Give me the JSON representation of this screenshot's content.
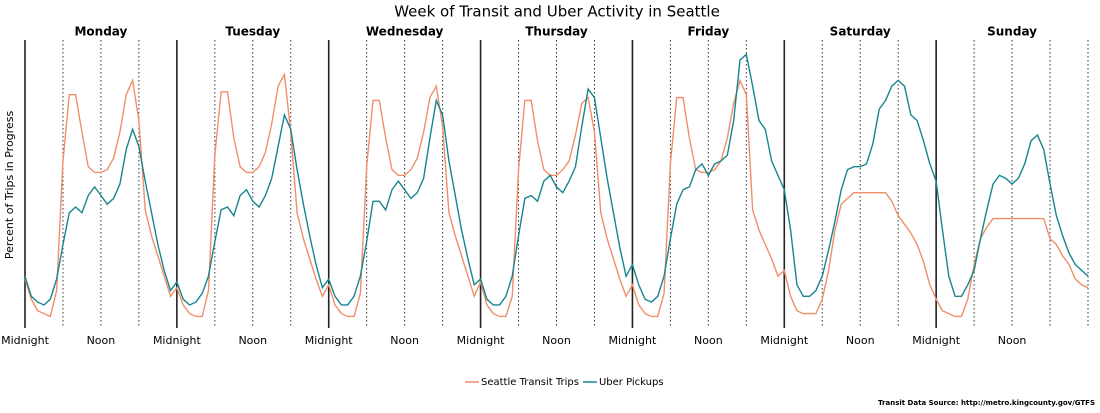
{
  "chart_data": {
    "type": "line",
    "title": "Week of Transit and Uber Activity in Seattle",
    "y_label": "Percent of Trips in Progress",
    "source": "Transit Data Source: http://metro.kingcounty.gov/GTFS",
    "days": [
      "Monday",
      "Tuesday",
      "Wednesday",
      "Thursday",
      "Friday",
      "Saturday",
      "Sunday"
    ],
    "xlim": [
      0,
      168
    ],
    "ylim": [
      0,
      100
    ],
    "xticks": [
      {
        "value": 0,
        "label": "Midnight"
      },
      {
        "value": 12,
        "label": "Noon"
      },
      {
        "value": 24,
        "label": "Midnight"
      },
      {
        "value": 36,
        "label": "Noon"
      },
      {
        "value": 48,
        "label": "Midnight"
      },
      {
        "value": 60,
        "label": "Noon"
      },
      {
        "value": 72,
        "label": "Midnight"
      },
      {
        "value": 84,
        "label": "Noon"
      },
      {
        "value": 96,
        "label": "Midnight"
      },
      {
        "value": 108,
        "label": "Noon"
      },
      {
        "value": 120,
        "label": "Midnight"
      },
      {
        "value": 132,
        "label": "Noon"
      },
      {
        "value": 144,
        "label": "Midnight"
      },
      {
        "value": 156,
        "label": "Noon"
      }
    ],
    "minor_xticks": [
      6,
      18,
      30,
      42,
      54,
      66,
      78,
      90,
      102,
      114,
      126,
      138,
      150,
      162,
      168
    ],
    "x": [
      0,
      1,
      2,
      3,
      4,
      5,
      6,
      7,
      8,
      9,
      10,
      11,
      12,
      13,
      14,
      15,
      16,
      17,
      18,
      19,
      20,
      21,
      22,
      23,
      24,
      25,
      26,
      27,
      28,
      29,
      30,
      31,
      32,
      33,
      34,
      35,
      36,
      37,
      38,
      39,
      40,
      41,
      42,
      43,
      44,
      45,
      46,
      47,
      48,
      49,
      50,
      51,
      52,
      53,
      54,
      55,
      56,
      57,
      58,
      59,
      60,
      61,
      62,
      63,
      64,
      65,
      66,
      67,
      68,
      69,
      70,
      71,
      72,
      73,
      74,
      75,
      76,
      77,
      78,
      79,
      80,
      81,
      82,
      83,
      84,
      85,
      86,
      87,
      88,
      89,
      90,
      91,
      92,
      93,
      94,
      95,
      96,
      97,
      98,
      99,
      100,
      101,
      102,
      103,
      104,
      105,
      106,
      107,
      108,
      109,
      110,
      111,
      112,
      113,
      114,
      115,
      116,
      117,
      118,
      119,
      120,
      121,
      122,
      123,
      124,
      125,
      126,
      127,
      128,
      129,
      130,
      131,
      132,
      133,
      134,
      135,
      136,
      137,
      138,
      139,
      140,
      141,
      142,
      143,
      144,
      145,
      146,
      147,
      148,
      149,
      150,
      151,
      152,
      153,
      154,
      155,
      156,
      157,
      158,
      159,
      160,
      161,
      162,
      163,
      164,
      165,
      166,
      167,
      168
    ],
    "series": [
      {
        "name": "Seattle Transit Trips",
        "color": "#f08e68",
        "values": [
          17,
          10,
          6,
          5,
          4,
          13,
          58,
          81,
          81,
          68,
          56,
          54,
          54,
          55,
          59,
          68,
          81,
          86,
          72,
          41,
          32,
          25,
          18,
          11,
          14,
          8,
          5,
          4,
          4,
          13,
          60,
          82,
          82,
          66,
          56,
          54,
          54,
          56,
          61,
          71,
          84,
          88,
          68,
          40,
          31,
          24,
          17,
          11,
          15,
          8,
          5,
          4,
          4,
          12,
          56,
          79,
          79,
          66,
          55,
          53,
          53,
          55,
          59,
          68,
          80,
          84,
          70,
          40,
          32,
          25,
          18,
          11,
          16,
          8,
          5,
          4,
          4,
          11,
          55,
          79,
          79,
          65,
          55,
          53,
          53,
          55,
          58,
          67,
          78,
          80,
          68,
          40,
          31,
          24,
          17,
          11,
          15,
          8,
          5,
          4,
          4,
          12,
          57,
          80,
          80,
          66,
          55,
          54,
          54,
          55,
          58,
          66,
          78,
          86,
          81,
          41,
          34,
          29,
          24,
          18,
          20,
          11,
          6,
          5,
          5,
          5,
          10,
          20,
          34,
          43,
          45,
          47,
          47,
          47,
          47,
          47,
          47,
          44,
          39,
          36,
          33,
          29,
          23,
          15,
          10,
          6,
          5,
          4,
          4,
          10,
          22,
          31,
          35,
          38,
          38,
          38,
          38,
          38,
          38,
          38,
          38,
          38,
          31,
          29,
          25,
          22,
          17,
          15,
          14
        ]
      },
      {
        "name": "Uber Pickups",
        "color": "#16858f",
        "values": [
          18,
          11,
          9,
          8,
          10,
          17,
          29,
          40,
          42,
          40,
          46,
          49,
          46,
          43,
          45,
          50,
          62,
          69,
          63,
          51,
          40,
          29,
          20,
          13,
          16,
          10,
          8,
          9,
          12,
          18,
          30,
          41,
          42,
          39,
          46,
          48,
          44,
          42,
          46,
          52,
          63,
          74,
          69,
          55,
          43,
          32,
          22,
          14,
          17,
          11,
          8,
          8,
          11,
          18,
          30,
          44,
          44,
          41,
          48,
          51,
          48,
          45,
          47,
          52,
          66,
          79,
          74,
          58,
          46,
          34,
          24,
          15,
          17,
          10,
          8,
          8,
          11,
          18,
          32,
          45,
          46,
          44,
          51,
          53,
          49,
          47,
          51,
          56,
          70,
          83,
          80,
          66,
          52,
          40,
          28,
          18,
          22,
          15,
          10,
          9,
          11,
          18,
          31,
          43,
          48,
          49,
          55,
          57,
          53,
          57,
          58,
          60,
          72,
          93,
          95,
          84,
          72,
          69,
          58,
          53,
          48,
          34,
          15,
          11,
          11,
          13,
          18,
          27,
          37,
          48,
          55,
          56,
          56,
          57,
          64,
          76,
          79,
          84,
          86,
          84,
          74,
          72,
          65,
          57,
          51,
          34,
          18,
          11,
          11,
          15,
          20,
          31,
          41,
          50,
          53,
          52,
          50,
          52,
          57,
          65,
          67,
          62,
          50,
          39,
          32,
          26,
          22,
          20,
          18
        ]
      }
    ]
  }
}
